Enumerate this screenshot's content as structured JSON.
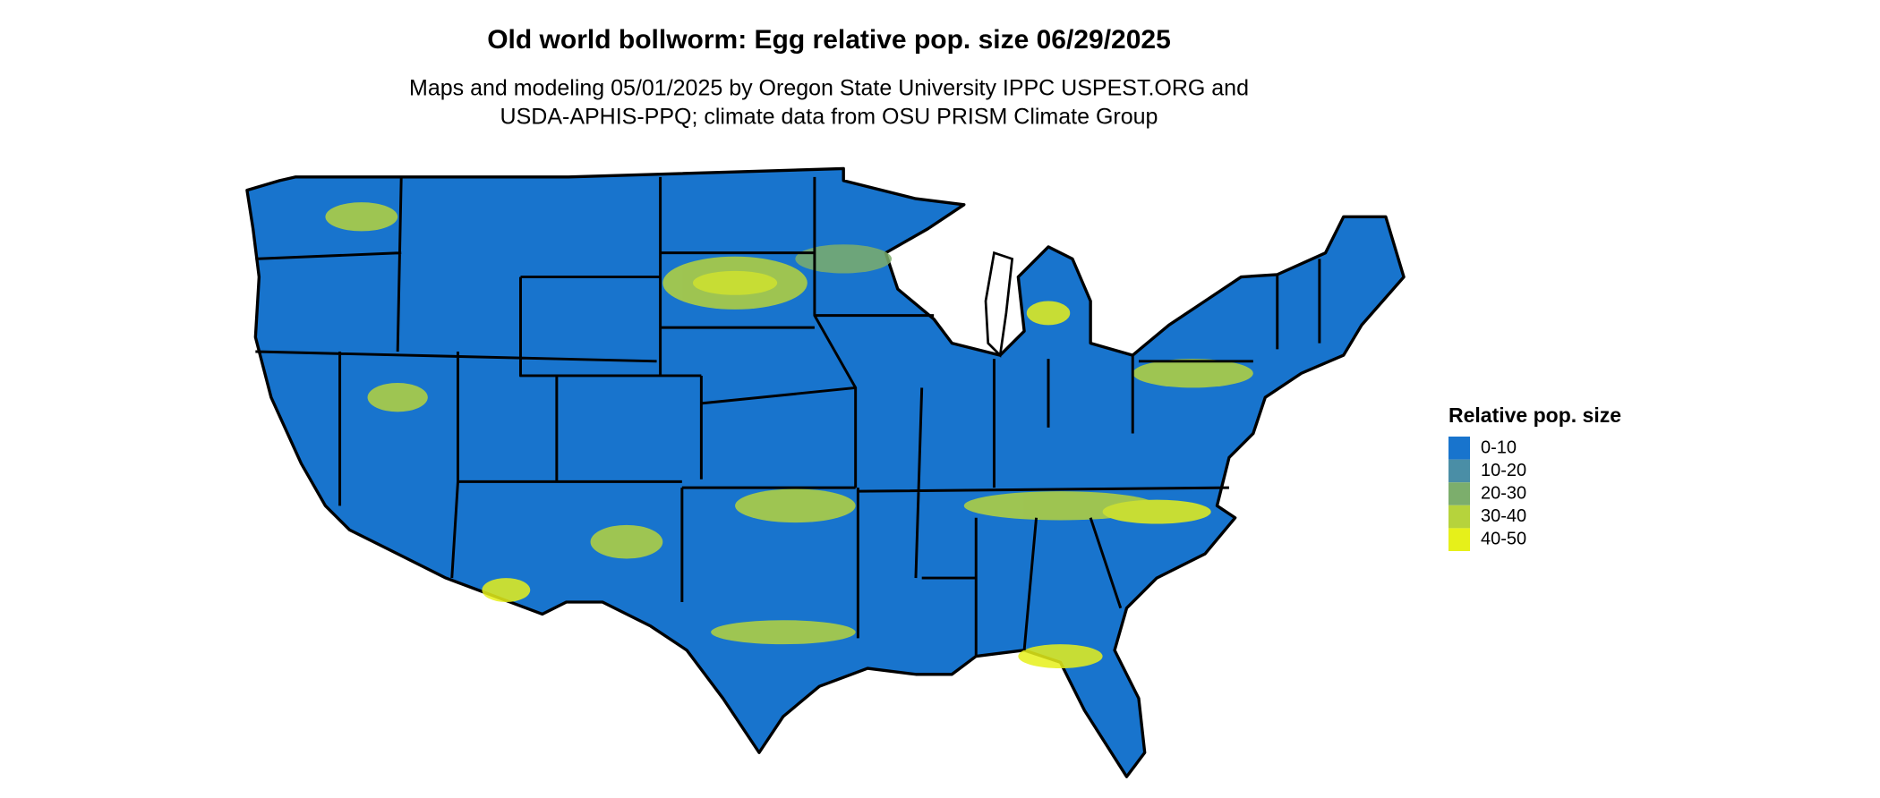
{
  "title": "Old world bollworm: Egg relative pop. size 06/29/2025",
  "subtitle": [
    "Maps and modeling 05/01/2025 by Oregon State University IPPC USPEST.ORG and",
    "USDA-APHIS-PPQ; climate data from OSU PRISM Climate Group"
  ],
  "legend": {
    "title": "Relative pop. size",
    "items": [
      {
        "label": "0-10",
        "color": "#1874cd"
      },
      {
        "label": "10-20",
        "color": "#4a8ea6"
      },
      {
        "label": "20-30",
        "color": "#7cae6c"
      },
      {
        "label": "30-40",
        "color": "#b6d33c"
      },
      {
        "label": "40-50",
        "color": "#e6f01a"
      }
    ]
  }
}
